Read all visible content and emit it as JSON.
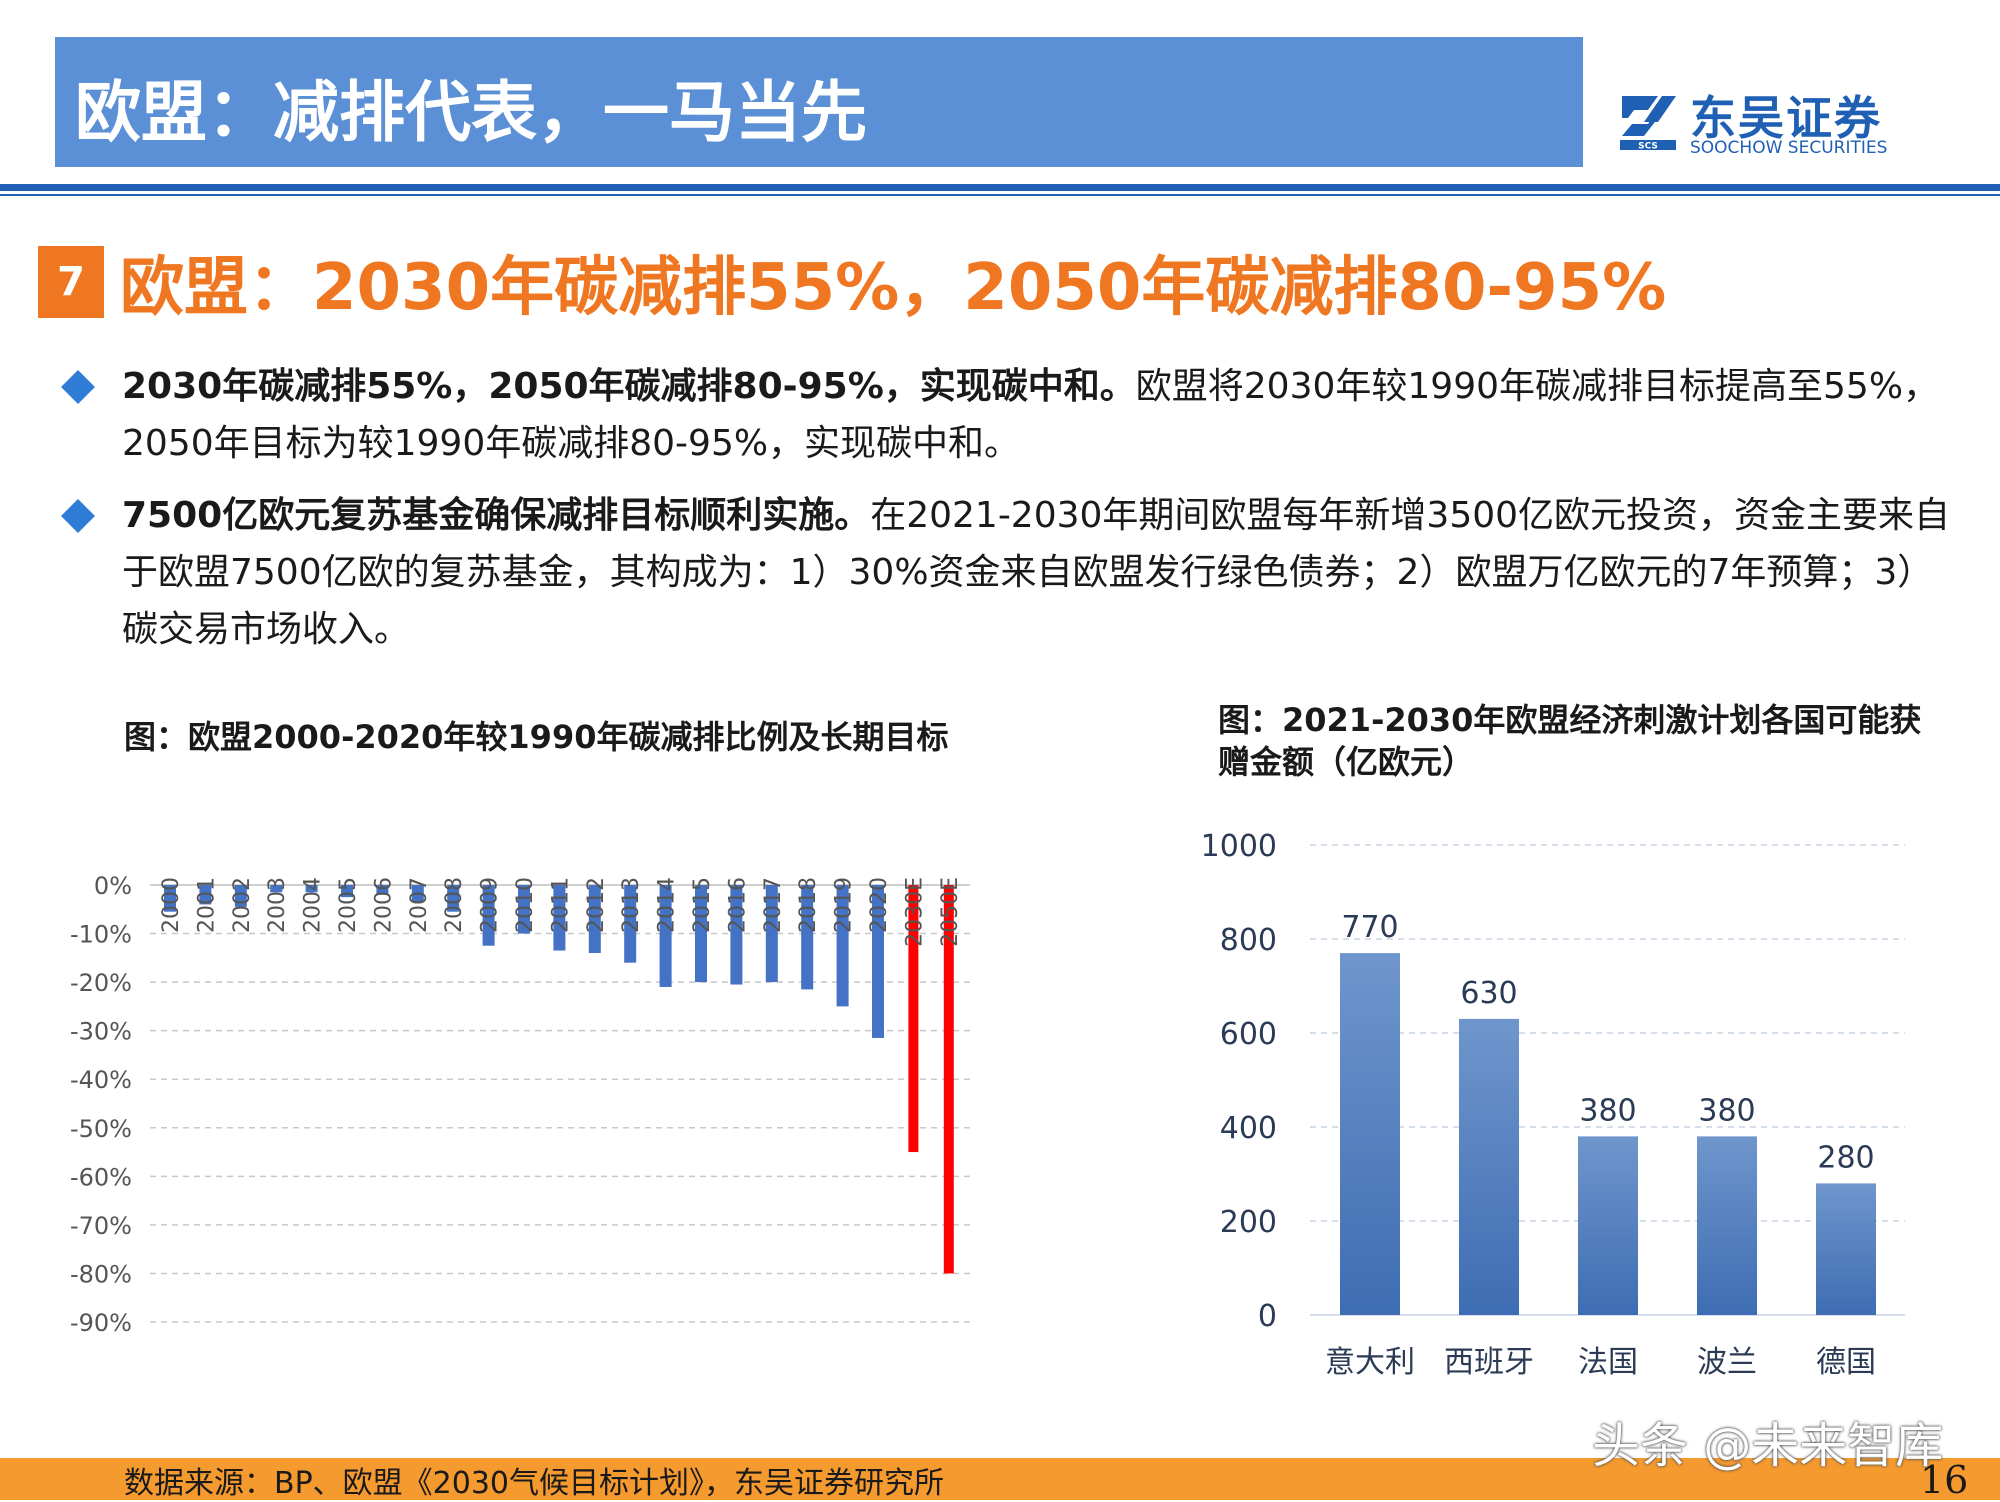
{
  "header": {
    "title": "欧盟：减排代表，一马当先",
    "logo_cn": "东吴证券",
    "logo_en": "SOOCHOW SECURITIES",
    "logo_abbr": "SCS"
  },
  "section": {
    "number": "7",
    "title": "欧盟：2030年碳减排55%，2050年碳减排80-95%"
  },
  "bullets": [
    {
      "bold": "2030年碳减排55%，2050年碳减排80-95%，实现碳中和。",
      "text": "欧盟将2030年较1990年碳减排目标提高至55%，2050年目标为较1990年碳减排80-95%，实现碳中和。"
    },
    {
      "bold": "7500亿欧元复苏基金确保减排目标顺利实施。",
      "text": "在2021-2030年期间欧盟每年新增3500亿欧元投资，资金主要来自于欧盟7500亿欧的复苏基金，其构成为：1）30%资金来自欧盟发行绿色债券；2）欧盟万亿欧元的7年预算；3）碳交易市场收入。"
    }
  ],
  "chart_data": [
    {
      "type": "bar",
      "title": "图：欧盟2000-2020年较1990年碳减排比例及长期目标",
      "categories": [
        "2000",
        "2001",
        "2002",
        "2003",
        "2004",
        "2005",
        "2006",
        "2007",
        "2008",
        "2009",
        "2010",
        "2011",
        "2012",
        "2013",
        "2014",
        "2015",
        "2016",
        "2017",
        "2018",
        "2019",
        "2020",
        "2030E",
        "2050E"
      ],
      "values": [
        -5.5,
        -4,
        -4.5,
        -1.5,
        -1.5,
        -2.5,
        -2,
        -3.5,
        -5.5,
        -12.5,
        -10,
        -13.5,
        -14,
        -16,
        -21,
        -20,
        -20.5,
        -20,
        -21.5,
        -25,
        -31.5,
        -55,
        -80
      ],
      "value_unit": "%",
      "ylim": [
        -90,
        0
      ],
      "yticks": [
        "0%",
        "-10%",
        "-20%",
        "-30%",
        "-40%",
        "-50%",
        "-60%",
        "-70%",
        "-80%",
        "-90%"
      ],
      "colors": {
        "historical": "#4472c4",
        "target": "#ff0000"
      },
      "grid": true,
      "legend": "none",
      "xlabel": "",
      "ylabel": ""
    },
    {
      "type": "bar",
      "title": "图：2021-2030年欧盟经济刺激计划各国可能获赠金额（亿欧元）",
      "categories": [
        "意大利",
        "西班牙",
        "法国",
        "波兰",
        "德国"
      ],
      "values": [
        770,
        630,
        380,
        380,
        280
      ],
      "data_labels": [
        "770",
        "630",
        "380",
        "380",
        "280"
      ],
      "ylim": [
        0,
        1000
      ],
      "yticks": [
        "0",
        "200",
        "400",
        "600",
        "800",
        "1000"
      ],
      "colors": {
        "bar_top": "#6f96cc",
        "bar_bottom": "#3e6db3"
      },
      "grid": true,
      "legend": "none",
      "xlabel": "",
      "ylabel": ""
    }
  ],
  "footer": {
    "source": "数据来源：BP、欧盟《2030气候目标计划》，东吴证券研究所",
    "watermark": "头条 @未来智库",
    "page": "16"
  }
}
